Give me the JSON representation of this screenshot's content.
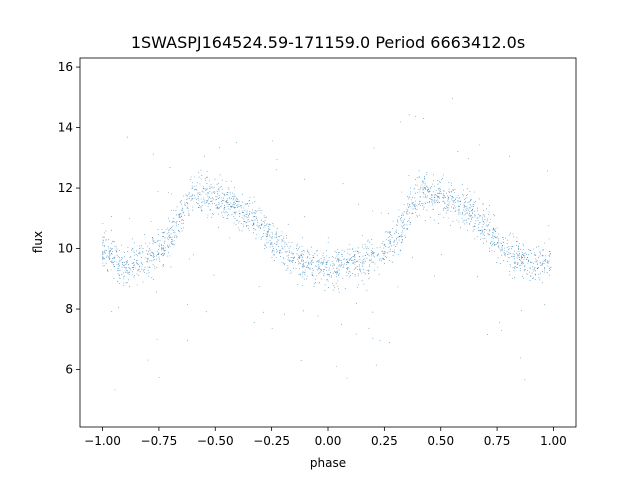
{
  "chart_data": {
    "type": "scatter",
    "title": "1SWASPJ164524.59-171159.0 Period 6663412.0s",
    "xlabel": "phase",
    "ylabel": "flux",
    "xlim": [
      -1.1,
      1.1
    ],
    "ylim": [
      4.1,
      16.3
    ],
    "xticks": [
      -1.0,
      -0.75,
      -0.5,
      -0.25,
      0.0,
      0.25,
      0.5,
      0.75,
      1.0
    ],
    "xtick_labels": [
      "−1.00",
      "−0.75",
      "−0.50",
      "−0.25",
      "0.00",
      "0.25",
      "0.50",
      "0.75",
      "1.00"
    ],
    "yticks": [
      6,
      8,
      10,
      12,
      14,
      16
    ],
    "ytick_labels": [
      "6",
      "8",
      "10",
      "12",
      "14",
      "16"
    ],
    "grid": false,
    "point_color": "#1f77b4",
    "trend": {
      "phase": [
        -1.0,
        -0.9,
        -0.8,
        -0.7,
        -0.6,
        -0.5,
        -0.4,
        -0.3,
        -0.2,
        -0.1,
        0.0,
        0.1,
        0.2,
        0.3,
        0.4,
        0.5,
        0.6,
        0.7,
        0.8,
        0.9,
        1.0
      ],
      "flux": [
        10.0,
        9.4,
        9.7,
        10.3,
        11.9,
        11.8,
        11.3,
        10.8,
        9.9,
        9.5,
        9.3,
        9.5,
        9.7,
        10.3,
        11.9,
        11.8,
        11.3,
        10.8,
        9.9,
        9.5,
        9.6
      ]
    }
  }
}
